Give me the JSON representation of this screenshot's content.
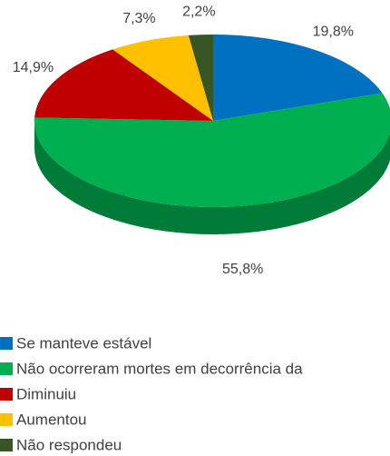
{
  "chart_data": {
    "type": "pie3d",
    "categories": [
      "Se manteve estável",
      "Não ocorreram mortes em decorrência da",
      "Diminuiu",
      "Aumentou",
      "Não respondeu"
    ],
    "values": [
      19.8,
      55.8,
      14.9,
      7.3,
      2.2
    ],
    "value_labels": [
      "19,8%",
      "55,8%",
      "14,9%",
      "7,3%",
      "2,2%"
    ],
    "colors": [
      "#0070c0",
      "#00b050",
      "#c00000",
      "#ffc000",
      "#375623"
    ],
    "legend": "bottom-left"
  }
}
